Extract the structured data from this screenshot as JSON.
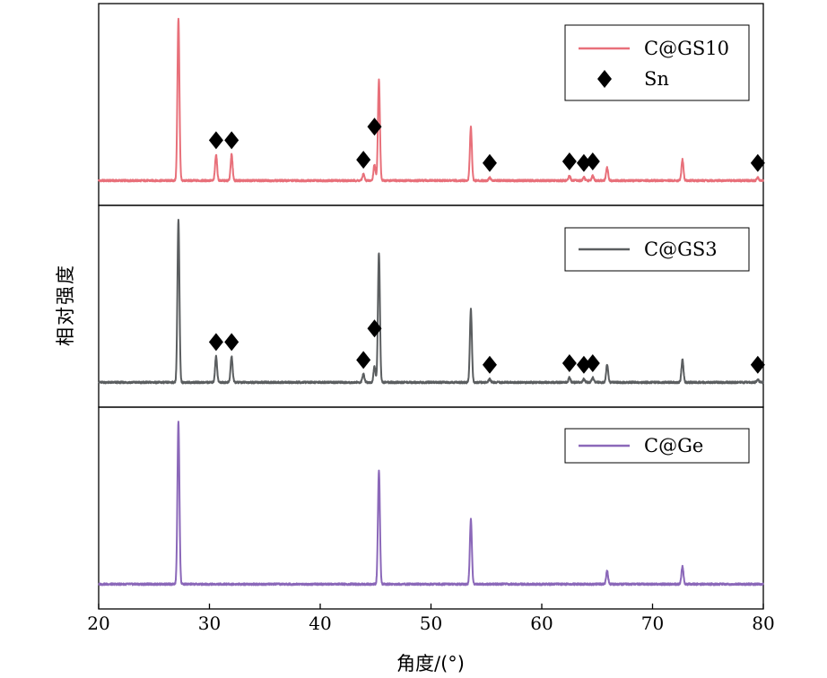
{
  "chart_data": {
    "type": "line",
    "xlabel": "角度/(°)",
    "ylabel": "相对强度",
    "xlim": [
      20,
      80
    ],
    "xticks": [
      "20",
      "30",
      "40",
      "50",
      "60",
      "70",
      "80"
    ],
    "grid": false,
    "legend_position": "top-right",
    "marker_label": "Sn",
    "marker_symbol": "◆",
    "panels": [
      {
        "series_name": "C@GS10",
        "color": "#e8707a",
        "baseline": 0.02,
        "peaks": [
          [
            27.2,
            1.0
          ],
          [
            30.6,
            0.16
          ],
          [
            32.0,
            0.16
          ],
          [
            43.9,
            0.04
          ],
          [
            44.9,
            0.1
          ],
          [
            45.3,
            0.62
          ],
          [
            53.6,
            0.33
          ],
          [
            55.3,
            0.02
          ],
          [
            62.5,
            0.03
          ],
          [
            63.8,
            0.02
          ],
          [
            64.6,
            0.03
          ],
          [
            65.9,
            0.08
          ],
          [
            72.7,
            0.13
          ],
          [
            79.5,
            0.02
          ]
        ],
        "markers": [
          30.6,
          32.0,
          43.9,
          44.9,
          55.3,
          62.5,
          63.8,
          64.6,
          79.5
        ]
      },
      {
        "series_name": "C@GS3",
        "color": "#5b5e60",
        "baseline": 0.02,
        "peaks": [
          [
            27.2,
            1.0
          ],
          [
            30.6,
            0.16
          ],
          [
            32.0,
            0.16
          ],
          [
            43.9,
            0.05
          ],
          [
            44.9,
            0.1
          ],
          [
            45.3,
            0.8
          ],
          [
            53.6,
            0.45
          ],
          [
            55.3,
            0.02
          ],
          [
            62.5,
            0.03
          ],
          [
            63.8,
            0.02
          ],
          [
            64.6,
            0.03
          ],
          [
            65.9,
            0.11
          ],
          [
            72.7,
            0.14
          ],
          [
            79.5,
            0.02
          ]
        ],
        "markers": [
          30.6,
          32.0,
          43.9,
          44.9,
          55.3,
          62.5,
          63.8,
          64.6,
          79.5
        ]
      },
      {
        "series_name": "C@Ge",
        "color": "#8b68b9",
        "baseline": 0.02,
        "peaks": [
          [
            27.2,
            1.0
          ],
          [
            45.3,
            0.7
          ],
          [
            53.6,
            0.4
          ],
          [
            65.9,
            0.08
          ],
          [
            72.7,
            0.11
          ]
        ],
        "markers": []
      }
    ]
  }
}
